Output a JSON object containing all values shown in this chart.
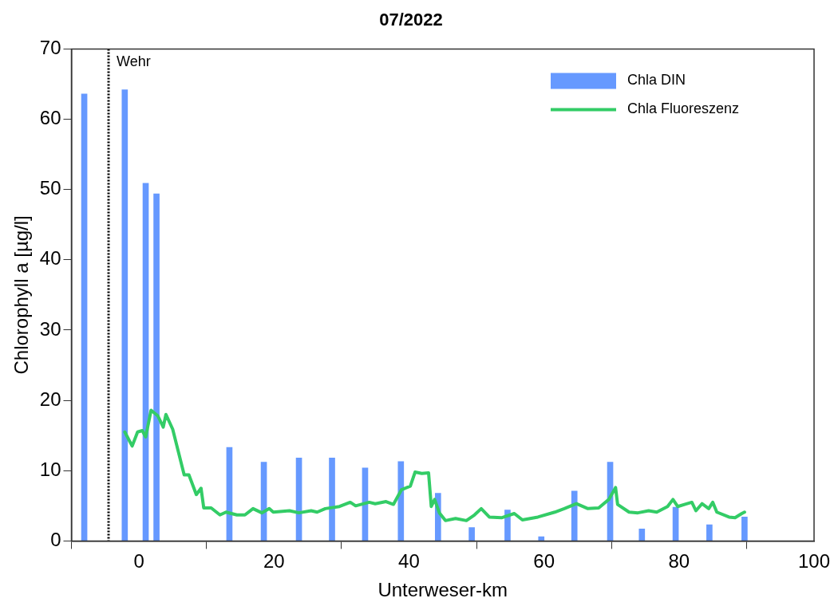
{
  "chart_data": {
    "type": "bar",
    "title": "07/2022",
    "xlabel": "Unterweser-km",
    "ylabel": "Chlorophyll a [µg/l]",
    "xlim": [
      -10,
      100
    ],
    "xticks": [
      0,
      20,
      40,
      60,
      80,
      100
    ],
    "ylim": [
      0,
      70
    ],
    "yticks": [
      0,
      10,
      20,
      30,
      40,
      50,
      60,
      70
    ],
    "grid": false,
    "legend": "top right",
    "series": [
      {
        "name": "Chla DIN",
        "color": "#6699ff",
        "x": [
          -8.1,
          -2.1,
          1.0,
          2.6,
          13.4,
          18.5,
          23.7,
          28.6,
          33.5,
          38.8,
          44.3,
          49.3,
          54.6,
          59.6,
          64.5,
          69.8,
          74.5,
          79.5,
          84.5,
          89.7
        ],
        "values": [
          63.6,
          64.2,
          50.9,
          49.4,
          13.3,
          11.2,
          11.8,
          11.8,
          10.4,
          11.3,
          6.8,
          1.9,
          4.4,
          0.6,
          7.1,
          11.2,
          1.7,
          4.8,
          2.3,
          3.4
        ]
      },
      {
        "name": "Chla Fluoreszenz",
        "type": "line",
        "color": "#33cc66",
        "marker": "none",
        "line_style": "solid",
        "x": [
          -2.1,
          -1.0,
          -0.2,
          0.5,
          1.0,
          1.8,
          2.8,
          3.6,
          4.0,
          5.0,
          6.7,
          7.4,
          8.5,
          9.2,
          9.6,
          10.7,
          12.0,
          12.9,
          14.5,
          15.7,
          16.9,
          18.2,
          19.3,
          19.9,
          22.3,
          23.7,
          25.5,
          26.4,
          27.6,
          29.7,
          31.3,
          32.1,
          34.1,
          35.0,
          36.6,
          37.7,
          38.9,
          40.2,
          40.9,
          41.9,
          42.9,
          43.3,
          43.8,
          44.5,
          45.4,
          46.9,
          48.5,
          49.7,
          50.7,
          51.9,
          53.7,
          55.6,
          56.8,
          59.1,
          61.6,
          63.0,
          64.8,
          66.5,
          68.1,
          69.6,
          70.6,
          70.9,
          72.6,
          73.9,
          75.5,
          76.7,
          78.3,
          79.1,
          79.8,
          81.2,
          81.9,
          82.5,
          83.4,
          84.4,
          85.0,
          85.6,
          87.4,
          88.3,
          89.3,
          89.7
        ],
        "values": [
          15.5,
          13.5,
          15.5,
          15.7,
          14.8,
          18.6,
          17.8,
          16.2,
          18.0,
          15.9,
          9.4,
          9.4,
          6.6,
          7.5,
          4.7,
          4.7,
          3.7,
          4.1,
          3.7,
          3.7,
          4.6,
          4.0,
          4.6,
          4.1,
          4.3,
          4.0,
          4.3,
          4.1,
          4.6,
          4.9,
          5.5,
          5.0,
          5.5,
          5.3,
          5.6,
          5.2,
          7.3,
          7.8,
          9.8,
          9.6,
          9.7,
          4.9,
          5.9,
          4.0,
          2.9,
          3.2,
          2.9,
          3.7,
          4.6,
          3.4,
          3.3,
          3.9,
          3.0,
          3.4,
          4.1,
          4.6,
          5.3,
          4.6,
          4.7,
          5.9,
          7.6,
          5.2,
          4.1,
          4.0,
          4.3,
          4.1,
          4.9,
          5.9,
          4.9,
          5.3,
          5.5,
          4.3,
          5.3,
          4.6,
          5.5,
          4.1,
          3.4,
          3.3,
          3.9,
          4.1
        ]
      }
    ],
    "ref_lines": [
      {
        "axis": "x",
        "value": -4.5,
        "label": "Wehr",
        "line_style": "dotted",
        "color": "#000000"
      }
    ]
  }
}
